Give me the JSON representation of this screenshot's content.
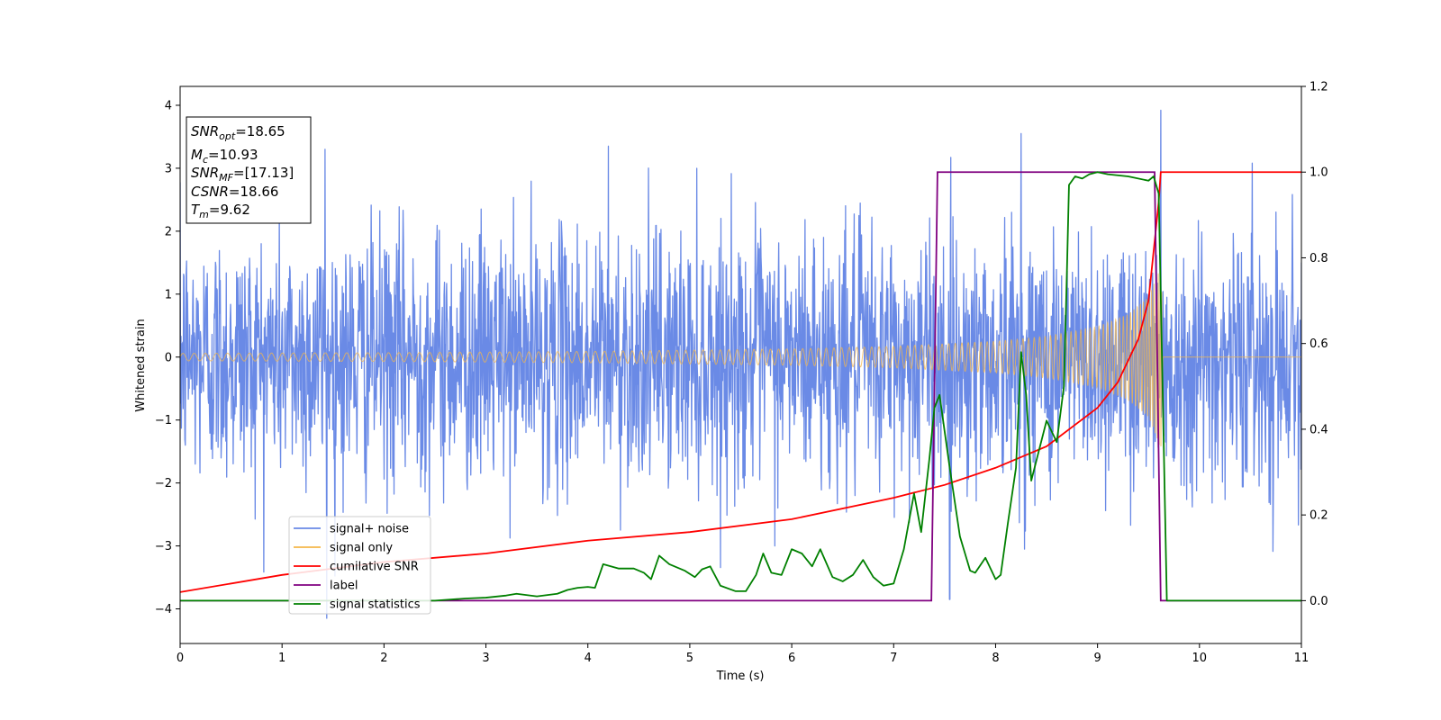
{
  "chart_data": {
    "type": "line",
    "title": "",
    "xlabel": "Time (s)",
    "ylabel": "Whitened strain",
    "y2label": "",
    "xlim": [
      0,
      11
    ],
    "ylim": [
      -4.55,
      4.3
    ],
    "y2lim": [
      -0.1,
      1.2
    ],
    "xticks": [
      "0",
      "1",
      "2",
      "3",
      "4",
      "5",
      "6",
      "7",
      "8",
      "9",
      "10",
      "11"
    ],
    "yticks": [
      "−4",
      "−3",
      "−2",
      "−1",
      "0",
      "1",
      "2",
      "3",
      "4"
    ],
    "y2ticks": [
      "0.0",
      "0.2",
      "0.4",
      "0.6",
      "0.8",
      "1.0",
      "1.2"
    ],
    "grid": false,
    "legend_position": "lower-left",
    "colors": {
      "signal_noise": "#6a8ae6",
      "signal_only": "#f5b74a",
      "cumulative_snr": "#ff0000",
      "label": "#800080",
      "signal_statistics": "#008000"
    },
    "series": [
      {
        "name": "signal+ noise",
        "axis": "left",
        "description_values": "white Gaussian noise, amplitude roughly ±2.5 with peaks up to ±4",
        "approx_peak_samples": [
          [
            1.42,
            3.3
          ],
          [
            1.44,
            -4.15
          ],
          [
            4.2,
            3.35
          ],
          [
            8.25,
            3.55
          ],
          [
            9.62,
            3.92
          ],
          [
            7.55,
            -3.85
          ]
        ]
      },
      {
        "name": "signal only",
        "axis": "left",
        "envelope": {
          "t": [
            0,
            2,
            4,
            6,
            7,
            8,
            8.5,
            9,
            9.3,
            9.5,
            9.6,
            9.62,
            9.65,
            11
          ],
          "amp": [
            0.06,
            0.07,
            0.09,
            0.13,
            0.17,
            0.25,
            0.33,
            0.48,
            0.68,
            0.95,
            1.35,
            1.55,
            0,
            0
          ]
        }
      },
      {
        "name": "cumilative SNR",
        "axis": "right",
        "t": [
          0,
          1,
          2,
          3,
          4,
          5,
          6,
          7,
          7.5,
          8,
          8.5,
          9,
          9.2,
          9.4,
          9.5,
          9.6,
          9.62,
          11
        ],
        "values": [
          0.02,
          0.06,
          0.09,
          0.11,
          0.14,
          0.16,
          0.19,
          0.24,
          0.27,
          0.31,
          0.36,
          0.45,
          0.51,
          0.61,
          0.7,
          0.93,
          1.0,
          1.0
        ]
      },
      {
        "name": "label",
        "axis": "right",
        "t": [
          0,
          7.37,
          7.43,
          9.56,
          9.62,
          11
        ],
        "values": [
          0.0,
          0.0,
          1.0,
          1.0,
          0.0,
          0.0
        ]
      },
      {
        "name": "signal statistics",
        "axis": "right",
        "t": [
          0,
          1.0,
          2.0,
          2.5,
          2.8,
          3.0,
          3.2,
          3.3,
          3.5,
          3.7,
          3.8,
          3.9,
          4.0,
          4.07,
          4.15,
          4.3,
          4.45,
          4.55,
          4.62,
          4.7,
          4.8,
          4.95,
          5.05,
          5.12,
          5.2,
          5.3,
          5.45,
          5.55,
          5.65,
          5.72,
          5.8,
          5.9,
          6.0,
          6.1,
          6.2,
          6.28,
          6.4,
          6.5,
          6.6,
          6.7,
          6.8,
          6.9,
          7.0,
          7.1,
          7.2,
          7.27,
          7.35,
          7.4,
          7.45,
          7.55,
          7.65,
          7.75,
          7.8,
          7.9,
          8.0,
          8.05,
          8.12,
          8.2,
          8.25,
          8.3,
          8.35,
          8.5,
          8.6,
          8.67,
          8.7,
          8.72,
          8.78,
          8.85,
          8.92,
          9.0,
          9.1,
          9.3,
          9.5,
          9.55,
          9.6,
          9.68,
          9.75,
          11
        ],
        "values": [
          0.0,
          0.0,
          0.0,
          0.0,
          0.005,
          0.007,
          0.012,
          0.016,
          0.01,
          0.016,
          0.025,
          0.03,
          0.032,
          0.03,
          0.085,
          0.075,
          0.075,
          0.065,
          0.05,
          0.105,
          0.085,
          0.07,
          0.055,
          0.073,
          0.08,
          0.035,
          0.022,
          0.022,
          0.06,
          0.11,
          0.065,
          0.06,
          0.12,
          0.11,
          0.08,
          0.12,
          0.055,
          0.045,
          0.06,
          0.095,
          0.055,
          0.035,
          0.04,
          0.12,
          0.25,
          0.16,
          0.33,
          0.45,
          0.48,
          0.31,
          0.15,
          0.07,
          0.065,
          0.1,
          0.05,
          0.06,
          0.18,
          0.31,
          0.58,
          0.48,
          0.28,
          0.42,
          0.37,
          0.5,
          0.77,
          0.97,
          0.99,
          0.985,
          0.995,
          1.0,
          0.995,
          0.99,
          0.98,
          0.99,
          0.95,
          0.0,
          0.0,
          0.0
        ]
      }
    ],
    "annotations": [
      {
        "main": "SNR",
        "sub": "opt",
        "rest": "=18.65"
      },
      {
        "main": "M",
        "sub": "c",
        "rest": "=10.93"
      },
      {
        "main": "SNR",
        "sub": "MF",
        "rest": "=[17.13]"
      },
      {
        "main": "CSNR",
        "sub": "",
        "rest": "=18.66"
      },
      {
        "main": "T",
        "sub": "m",
        "rest": "=9.62"
      }
    ]
  }
}
